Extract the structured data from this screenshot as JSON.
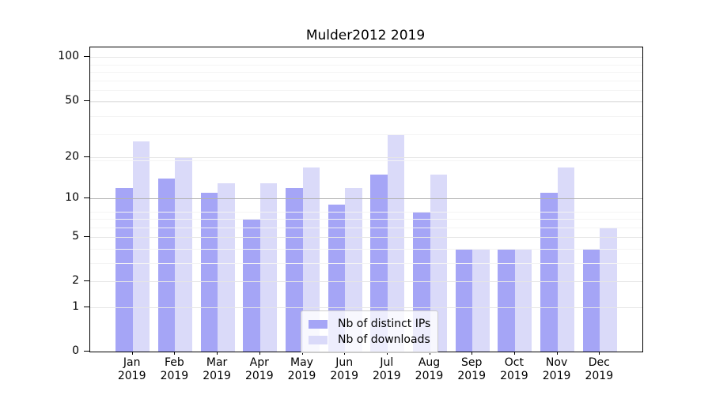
{
  "title": "Mulder2012 2019",
  "chart_data": {
    "type": "bar",
    "title": "Mulder2012 2019",
    "categories": [
      "Jan 2019",
      "Feb 2019",
      "Mar 2019",
      "Apr 2019",
      "May 2019",
      "Jun 2019",
      "Jul 2019",
      "Aug 2019",
      "Sep 2019",
      "Oct 2019",
      "Nov 2019",
      "Dec 2019"
    ],
    "series": [
      {
        "name": "Nb of distinct IPs",
        "color": "#a5a5f6",
        "values": [
          12,
          14,
          11,
          7,
          12,
          9,
          15,
          8,
          4,
          4,
          11,
          4
        ]
      },
      {
        "name": "Nb of downloads",
        "color": "#dadaf9",
        "values": [
          26,
          20,
          13,
          13,
          17,
          12,
          29,
          15,
          4,
          4,
          17,
          6
        ]
      }
    ],
    "yscale": "log10(1+v)",
    "yticks": [
      100,
      50,
      20,
      10,
      5,
      2,
      1,
      0
    ],
    "ylim": [
      0,
      115
    ],
    "grid": "on",
    "legend_position": "lower center"
  },
  "colors": {
    "grid_minor": "#f4f4f4",
    "grid_tick": "#e6e6e6",
    "grid_decade": "#b2b2b2",
    "spine": "#000000",
    "legend_border": "#cccccc"
  }
}
